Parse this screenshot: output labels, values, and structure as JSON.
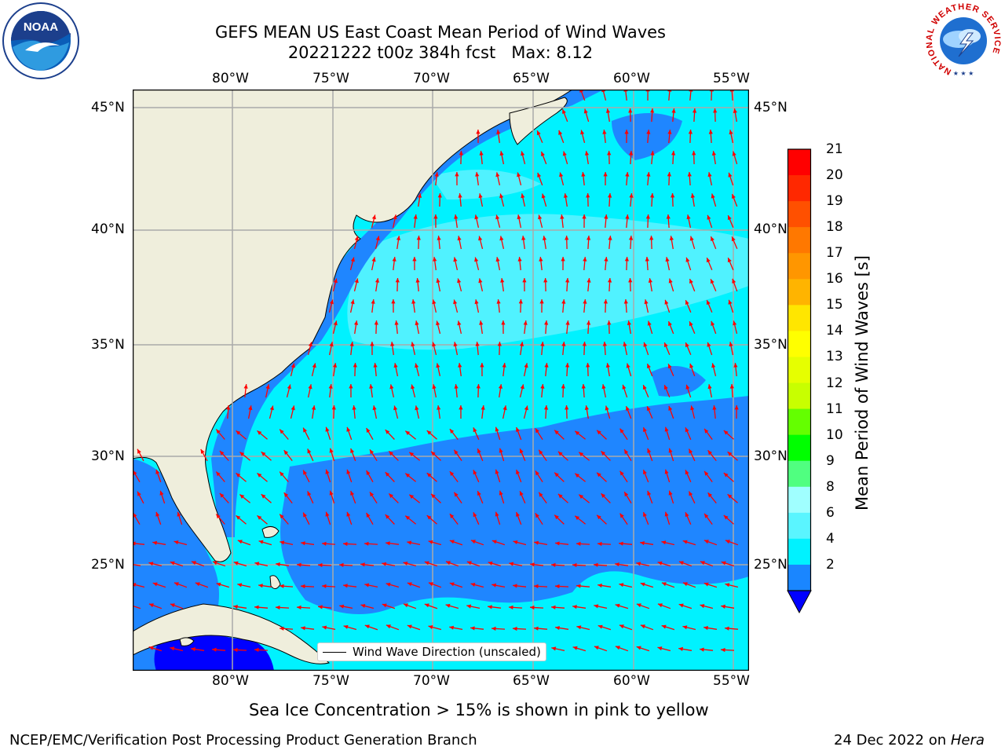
{
  "title": {
    "line1": "GEFS MEAN US East Coast Mean Period of Wind Waves",
    "line2": "20221222 t00z 384h fcst   Max: 8.12"
  },
  "logos": {
    "left": "NOAA",
    "right": "NATIONAL WEATHER SERVICE"
  },
  "map": {
    "lon_ticks": [
      "80°W",
      "75°W",
      "70°W",
      "65°W",
      "60°W",
      "55°W"
    ],
    "lat_ticks": [
      "45°N",
      "40°N",
      "35°N",
      "30°N",
      "25°N"
    ],
    "lon_range": [
      -85,
      -54.5
    ],
    "lat_range": [
      20.5,
      45.8
    ],
    "legend_label": "Wind Wave Direction (unscaled)",
    "colors": {
      "land": "#efeedc",
      "ocean_main": "#00f2ff",
      "ocean_dark": "#1f86ff",
      "ocean_light": "#59f2ff",
      "ocean_deep": "#0000ff",
      "arrow": "#ff0000",
      "grid": "#aaaaaa"
    }
  },
  "colorbar": {
    "label": "Mean Period of Wind Waves [s]",
    "ticks": [
      "21",
      "20",
      "19",
      "18",
      "17",
      "16",
      "15",
      "14",
      "13",
      "12",
      "11",
      "10",
      "9",
      "8",
      "6",
      "4",
      "2"
    ],
    "colors": [
      "#ff0000",
      "#ff2800",
      "#ff5000",
      "#ff7800",
      "#ff9600",
      "#ffb400",
      "#ffe600",
      "#ffff00",
      "#e6ff00",
      "#c8ff00",
      "#64ff00",
      "#00ff00",
      "#50ff80",
      "#a0ffff",
      "#5af5ff",
      "#00f2ff",
      "#1a86ff"
    ],
    "under_color": "#0000ff"
  },
  "notes": {
    "sea_ice": "Sea Ice Concentration > 15% is shown in pink to yellow"
  },
  "footer": {
    "left": "NCEP/EMC/Verification Post Processing Product Generation Branch",
    "right_date": "24 Dec 2022 on ",
    "right_machine": "Hera"
  }
}
